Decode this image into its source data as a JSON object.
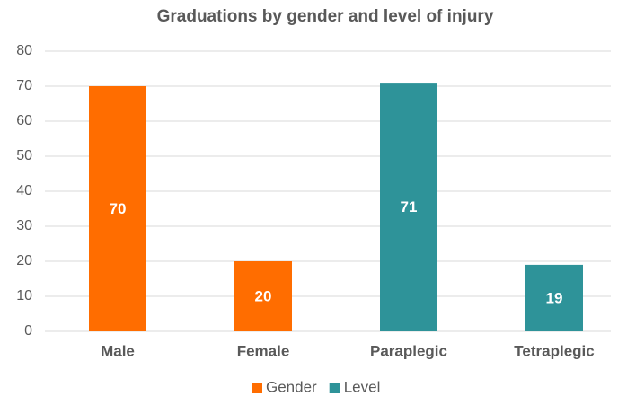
{
  "chart_data": {
    "type": "bar",
    "title": "Graduations by gender and level of injury",
    "categories": [
      "Male",
      "Female",
      "Paraplegic",
      "Tetraplegic"
    ],
    "series": [
      {
        "name": "Gender",
        "color": "#ff6d00",
        "values": [
          70,
          20,
          null,
          null
        ]
      },
      {
        "name": "Level",
        "color": "#2e9399",
        "values": [
          null,
          null,
          71,
          19
        ]
      }
    ],
    "ylim": [
      0,
      80
    ],
    "yticks": [
      0,
      10,
      20,
      30,
      40,
      50,
      60,
      70,
      80
    ],
    "grid": true,
    "legend": "bottom"
  }
}
